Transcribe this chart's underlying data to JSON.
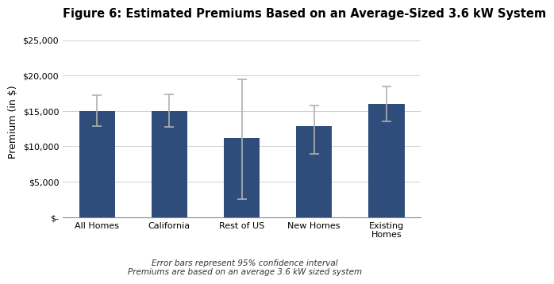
{
  "title": "Figure 6: Estimated Premiums Based on an Average-Sized 3.6 kW System",
  "categories": [
    "All Homes",
    "California",
    "Rest of US",
    "New Homes",
    "Existing\nHomes"
  ],
  "values": [
    15000,
    15000,
    11200,
    12800,
    16000
  ],
  "errors_low": [
    2200,
    2300,
    8700,
    3900,
    2500
  ],
  "errors_high": [
    2200,
    2300,
    8300,
    3000,
    2500
  ],
  "bar_color": "#2E4D7B",
  "error_color": "#b0b0b0",
  "ylabel": "Premium (in $)",
  "ylim": [
    0,
    27000
  ],
  "yticks": [
    0,
    5000,
    10000,
    15000,
    20000,
    25000
  ],
  "ytick_labels": [
    "$-",
    "$5,000",
    "$10,000",
    "$15,000",
    "$20,000",
    "$25,000"
  ],
  "footnote_line1": "Error bars represent 95% confidence interval",
  "footnote_line2": "Premiums are based on an average 3.6 kW sized system",
  "background_color": "#ffffff",
  "grid_color": "#d0d0d0",
  "title_fontsize": 10.5,
  "ylabel_fontsize": 9,
  "tick_fontsize": 8,
  "footnote_fontsize": 7.5,
  "bar_width": 0.5
}
